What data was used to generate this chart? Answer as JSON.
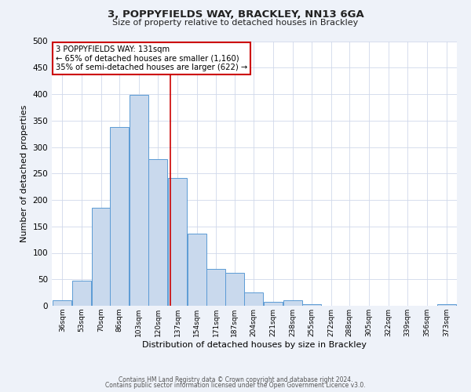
{
  "title": "3, POPPYFIELDS WAY, BRACKLEY, NN13 6GA",
  "subtitle": "Size of property relative to detached houses in Brackley",
  "xlabel": "Distribution of detached houses by size in Brackley",
  "ylabel": "Number of detached properties",
  "bin_labels": [
    "36sqm",
    "53sqm",
    "70sqm",
    "86sqm",
    "103sqm",
    "120sqm",
    "137sqm",
    "154sqm",
    "171sqm",
    "187sqm",
    "204sqm",
    "221sqm",
    "238sqm",
    "255sqm",
    "272sqm",
    "288sqm",
    "305sqm",
    "322sqm",
    "339sqm",
    "356sqm",
    "373sqm"
  ],
  "bar_heights": [
    10,
    47,
    185,
    338,
    398,
    277,
    242,
    136,
    70,
    62,
    25,
    8,
    10,
    3,
    0,
    0,
    0,
    0,
    0,
    0,
    3
  ],
  "bar_color": "#c9d9ed",
  "bar_edge_color": "#5b9bd5",
  "vline_color": "#cc0000",
  "annotation_title": "3 POPPYFIELDS WAY: 131sqm",
  "annotation_line1": "← 65% of detached houses are smaller (1,160)",
  "annotation_line2": "35% of semi-detached houses are larger (622) →",
  "annotation_box_color": "#cc0000",
  "ylim": [
    0,
    500
  ],
  "yticks": [
    0,
    50,
    100,
    150,
    200,
    250,
    300,
    350,
    400,
    450,
    500
  ],
  "footer1": "Contains HM Land Registry data © Crown copyright and database right 2024.",
  "footer2": "Contains public sector information licensed under the Open Government Licence v3.0.",
  "background_color": "#eef2f9",
  "plot_bg_color": "#ffffff",
  "grid_color": "#d0d8ea"
}
